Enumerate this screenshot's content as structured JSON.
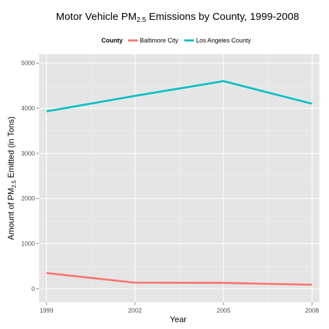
{
  "chart_data": {
    "type": "line",
    "title": "Motor Vehicle PM",
    "title_subscript": "2.5",
    "title_rest": " Emissions by County, 1999-2008",
    "xlabel": "Year",
    "ylabel": "Amount of PM",
    "ylabel_subscript": "2.5",
    "ylabel_rest": " Emitted (in Tons)",
    "legend_title": "County",
    "legend_position": "top-center",
    "grid": true,
    "x": [
      1999,
      2002,
      2005,
      2008
    ],
    "xlim": [
      1998.75,
      2008.25
    ],
    "ylim": [
      -300,
      5200
    ],
    "x_ticks": [
      1999,
      2002,
      2005,
      2008
    ],
    "x_tick_labels": [
      "1999",
      "2002",
      "2005",
      "2008"
    ],
    "y_ticks": [
      0,
      1000,
      2000,
      3000,
      4000,
      5000
    ],
    "y_tick_labels": [
      "0",
      "1000",
      "2000",
      "3000",
      "4000",
      "5000"
    ],
    "series": [
      {
        "name": "Baltimore City",
        "values": [
          346.82,
          134.31,
          130.43,
          88.28
        ],
        "color": "#F8766D"
      },
      {
        "name": "Los Angeles County",
        "values": [
          3931.12,
          4274.03,
          4601.41,
          4101.32
        ],
        "color": "#00BFC4"
      }
    ],
    "panel_color": "#E5E5E5",
    "grid_color": "#FFFFFF"
  }
}
